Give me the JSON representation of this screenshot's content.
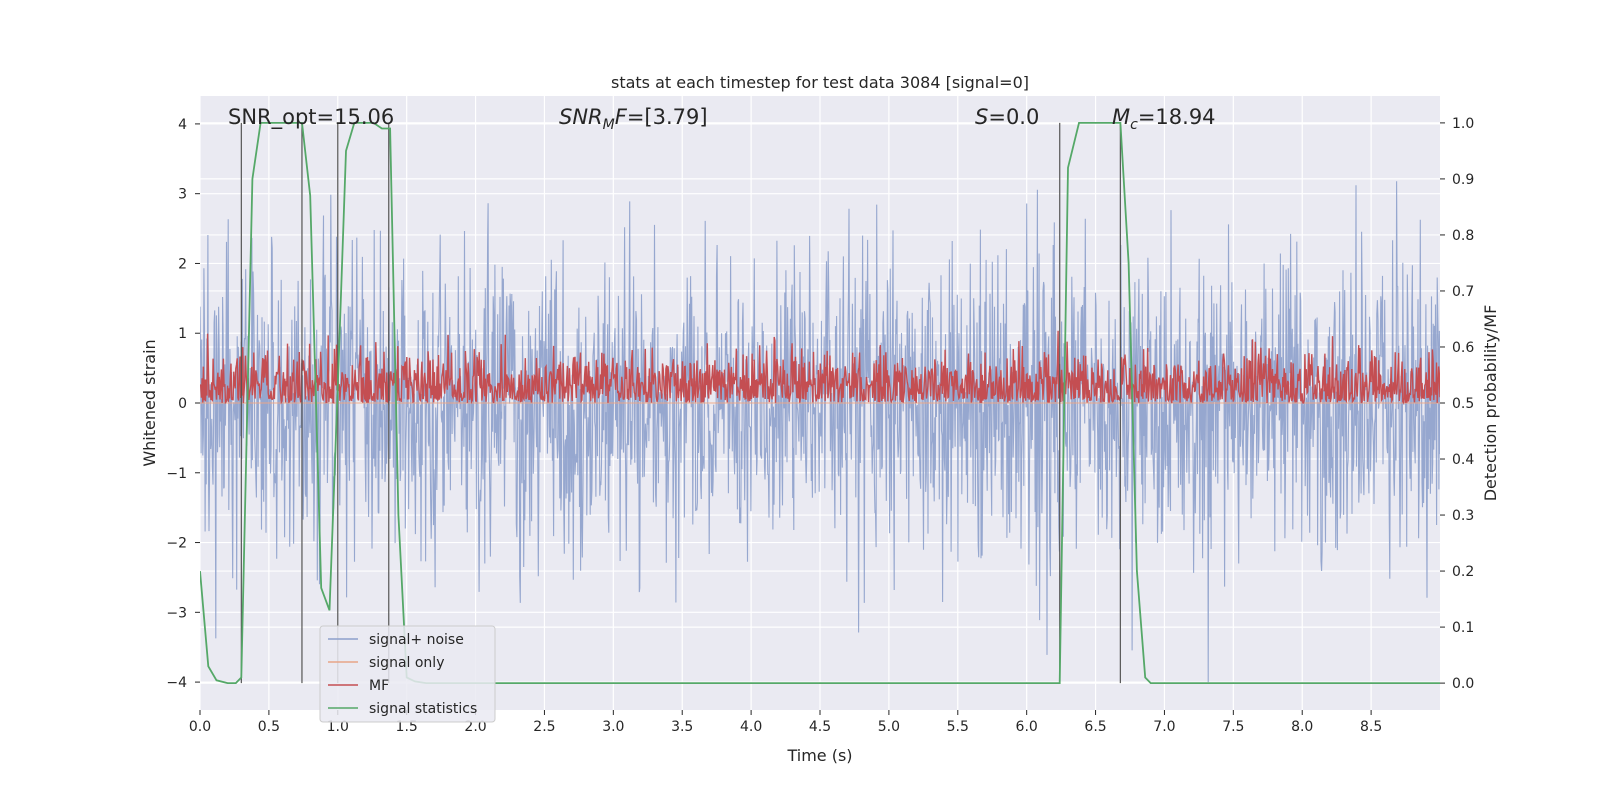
{
  "chart_data": {
    "type": "line",
    "title": "stats at each timestep for test data 3084 [signal=0]",
    "xlabel": "Time (s)",
    "ylabel": "Whitened strain",
    "y2label": "Detection probability/MF",
    "xlim": [
      0,
      9.0
    ],
    "ylim": [
      -4.4,
      4.4
    ],
    "y2lim": [
      -0.048,
      1.048
    ],
    "xticks": [
      0.0,
      0.5,
      1.0,
      1.5,
      2.0,
      2.5,
      3.0,
      3.5,
      4.0,
      4.5,
      5.0,
      5.5,
      6.0,
      6.5,
      7.0,
      7.5,
      8.0,
      8.5
    ],
    "xtick_labels": [
      "0.0",
      "0.5",
      "1.0",
      "1.5",
      "2.0",
      "2.5",
      "3.0",
      "3.5",
      "4.0",
      "4.5",
      "5.0",
      "5.5",
      "6.0",
      "6.5",
      "7.0",
      "7.5",
      "8.0",
      "8.5"
    ],
    "yticks": [
      -4,
      -3,
      -2,
      -1,
      0,
      1,
      2,
      3,
      4
    ],
    "ytick_labels": [
      "−4",
      "−3",
      "−2",
      "−1",
      "0",
      "1",
      "2",
      "3",
      "4"
    ],
    "y2ticks": [
      0.0,
      0.1,
      0.2,
      0.3,
      0.4,
      0.5,
      0.6,
      0.7,
      0.8,
      0.9,
      1.0
    ],
    "y2tick_labels": [
      "0.0",
      "0.1",
      "0.2",
      "0.3",
      "0.4",
      "0.5",
      "0.6",
      "0.7",
      "0.8",
      "0.9",
      "1.0"
    ],
    "grid": true,
    "legend_position": "lower-left",
    "annotations": {
      "snr_opt": "SNR_opt=15.06",
      "snr_mf_italic": "SNR",
      "snr_mf_sub": "M",
      "snr_mf_rest_italic": "F",
      "snr_mf_value": "=[3.79]",
      "s_italic": "S",
      "s_value": "=0.0",
      "mc_italic": "M",
      "mc_sub": "c",
      "mc_value": "=18.94"
    },
    "series": [
      {
        "name": "signal+ noise",
        "color": "#8da0cb",
        "axis": "left",
        "kind": "noise",
        "n_points": 2200,
        "envelope_abs": 4.0,
        "typical_abs": 1.6
      },
      {
        "name": "signal only",
        "color": "#e8a487",
        "axis": "left",
        "kind": "constant",
        "value": 0
      },
      {
        "name": "MF",
        "color": "#c44e52",
        "axis": "right",
        "kind": "noise",
        "n_points": 1800,
        "mean": 0.53,
        "range": [
          0.5,
          0.63
        ]
      },
      {
        "name": "signal statistics",
        "color": "#55a868",
        "axis": "right",
        "kind": "line",
        "x": [
          0.0,
          0.06,
          0.12,
          0.2,
          0.26,
          0.3,
          0.38,
          0.44,
          0.5,
          0.56,
          0.62,
          0.68,
          0.74,
          0.8,
          0.88,
          0.94,
          1.0,
          1.06,
          1.12,
          1.2,
          1.26,
          1.32,
          1.38,
          1.44,
          1.5,
          1.56,
          1.64,
          1.7,
          1.8,
          2.0,
          3.0,
          4.0,
          5.0,
          6.0,
          6.18,
          6.24,
          6.3,
          6.38,
          6.5,
          6.6,
          6.68,
          6.74,
          6.8,
          6.86,
          6.9,
          7.0,
          8.0,
          9.0
        ],
        "y": [
          0.2,
          0.03,
          0.005,
          0.0,
          0.0,
          0.01,
          0.9,
          1.0,
          1.0,
          1.0,
          1.0,
          1.0,
          1.0,
          0.87,
          0.17,
          0.13,
          0.53,
          0.95,
          1.0,
          1.0,
          1.0,
          0.99,
          0.99,
          0.3,
          0.01,
          0.003,
          0.0,
          0.0,
          0.0,
          0.0,
          0.0,
          0.0,
          0.0,
          0.0,
          0.0,
          0.0,
          0.92,
          1.0,
          1.0,
          1.0,
          1.0,
          0.75,
          0.2,
          0.01,
          0.0,
          0.0,
          0.0,
          0.0
        ]
      }
    ],
    "vertical_lines": [
      0.3,
      0.74,
      1.0,
      1.37,
      6.24,
      6.68
    ]
  }
}
